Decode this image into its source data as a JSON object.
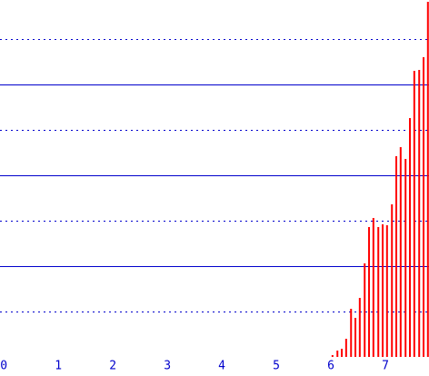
{
  "chart_data": {
    "type": "stem",
    "x": [
      6.03,
      6.12,
      6.2,
      6.28,
      6.37,
      6.45,
      6.53,
      6.62,
      6.7,
      6.78,
      6.87,
      6.95,
      7.03,
      7.12,
      7.2,
      7.28,
      7.37,
      7.45,
      7.53,
      7.62,
      7.7,
      7.78
    ],
    "values": [
      0.04,
      0.14,
      0.18,
      0.4,
      1.06,
      0.86,
      1.3,
      2.06,
      2.86,
      3.06,
      2.86,
      2.92,
      2.9,
      3.36,
      4.42,
      4.62,
      4.36,
      5.26,
      6.3,
      6.32,
      6.6,
      7.82
    ],
    "color": "#ff0000",
    "xlim": [
      -0.07,
      7.8
    ],
    "xticks": [
      0,
      1,
      2,
      3,
      4,
      5,
      6,
      7
    ],
    "ylim": [
      0,
      7.86
    ],
    "yticks": [
      1,
      2,
      3,
      4,
      5,
      6,
      7
    ],
    "grid": true,
    "grid_color": "#0000cc"
  }
}
